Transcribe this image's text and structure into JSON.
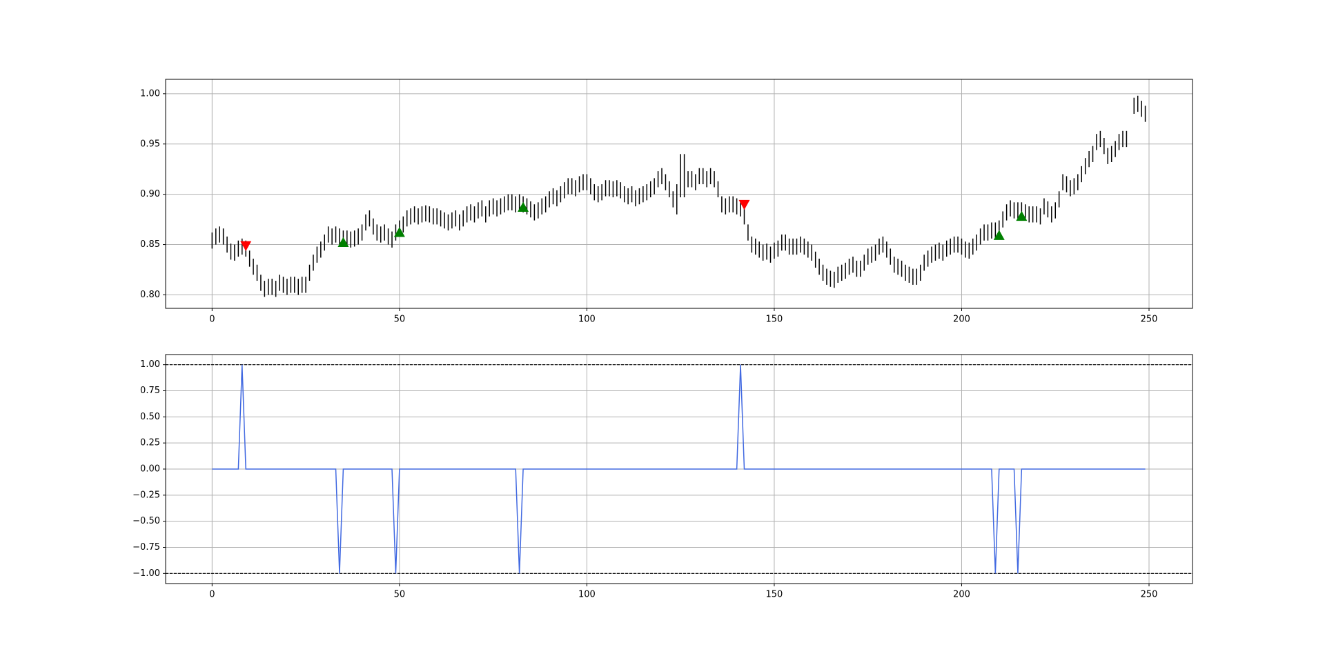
{
  "chart_data": [
    {
      "type": "range_bar",
      "color": "#000000",
      "grid": true,
      "xlim": [
        -12.4,
        261.6
      ],
      "xticks": [
        0,
        50,
        100,
        150,
        200,
        250
      ],
      "ylim": [
        0.7866,
        1.0143
      ],
      "yticks": [
        {
          "value": 0.8,
          "label": "0.80"
        },
        {
          "value": 0.85,
          "label": "0.85"
        },
        {
          "value": 0.9,
          "label": "0.90"
        },
        {
          "value": 0.95,
          "label": "0.95"
        },
        {
          "value": 1.0,
          "label": "1.00"
        }
      ],
      "low": [
        0.846,
        0.85,
        0.852,
        0.85,
        0.842,
        0.835,
        0.834,
        0.838,
        0.84,
        0.838,
        0.828,
        0.82,
        0.814,
        0.804,
        0.798,
        0.8,
        0.8,
        0.798,
        0.804,
        0.802,
        0.8,
        0.802,
        0.802,
        0.8,
        0.802,
        0.802,
        0.814,
        0.824,
        0.832,
        0.837,
        0.844,
        0.852,
        0.85,
        0.852,
        0.85,
        0.848,
        0.848,
        0.847,
        0.848,
        0.85,
        0.854,
        0.864,
        0.868,
        0.86,
        0.854,
        0.852,
        0.854,
        0.85,
        0.847,
        0.854,
        0.858,
        0.862,
        0.868,
        0.87,
        0.872,
        0.87,
        0.872,
        0.873,
        0.872,
        0.87,
        0.87,
        0.868,
        0.866,
        0.864,
        0.866,
        0.868,
        0.864,
        0.868,
        0.872,
        0.874,
        0.872,
        0.876,
        0.878,
        0.872,
        0.878,
        0.88,
        0.878,
        0.88,
        0.882,
        0.884,
        0.884,
        0.882,
        0.884,
        0.882,
        0.88,
        0.877,
        0.874,
        0.876,
        0.88,
        0.882,
        0.887,
        0.89,
        0.888,
        0.892,
        0.896,
        0.9,
        0.9,
        0.898,
        0.902,
        0.904,
        0.904,
        0.9,
        0.894,
        0.892,
        0.894,
        0.898,
        0.898,
        0.897,
        0.898,
        0.896,
        0.892,
        0.89,
        0.892,
        0.888,
        0.89,
        0.892,
        0.894,
        0.897,
        0.9,
        0.907,
        0.91,
        0.904,
        0.897,
        0.887,
        0.88,
        0.897,
        0.897,
        0.907,
        0.907,
        0.904,
        0.91,
        0.91,
        0.907,
        0.91,
        0.907,
        0.897,
        0.882,
        0.88,
        0.882,
        0.882,
        0.88,
        0.878,
        0.87,
        0.854,
        0.842,
        0.84,
        0.837,
        0.834,
        0.835,
        0.832,
        0.836,
        0.838,
        0.844,
        0.844,
        0.84,
        0.84,
        0.84,
        0.842,
        0.84,
        0.837,
        0.834,
        0.827,
        0.82,
        0.814,
        0.81,
        0.808,
        0.807,
        0.812,
        0.814,
        0.816,
        0.82,
        0.822,
        0.818,
        0.818,
        0.824,
        0.83,
        0.832,
        0.834,
        0.84,
        0.842,
        0.837,
        0.83,
        0.822,
        0.82,
        0.818,
        0.814,
        0.812,
        0.81,
        0.81,
        0.814,
        0.824,
        0.828,
        0.832,
        0.834,
        0.836,
        0.834,
        0.838,
        0.84,
        0.842,
        0.842,
        0.84,
        0.837,
        0.836,
        0.84,
        0.844,
        0.85,
        0.854,
        0.854,
        0.856,
        0.856,
        0.858,
        0.867,
        0.874,
        0.878,
        0.876,
        0.876,
        0.876,
        0.874,
        0.872,
        0.872,
        0.872,
        0.87,
        0.88,
        0.877,
        0.872,
        0.876,
        0.887,
        0.904,
        0.902,
        0.898,
        0.9,
        0.904,
        0.912,
        0.92,
        0.927,
        0.932,
        0.944,
        0.947,
        0.94,
        0.93,
        0.932,
        0.937,
        0.944,
        0.947,
        0.947,
        null,
        0.98,
        0.982,
        0.977,
        0.972
      ],
      "high": [
        0.862,
        0.866,
        0.868,
        0.866,
        0.858,
        0.851,
        0.85,
        0.854,
        0.856,
        0.854,
        0.844,
        0.836,
        0.83,
        0.82,
        0.814,
        0.816,
        0.816,
        0.814,
        0.82,
        0.818,
        0.816,
        0.818,
        0.818,
        0.816,
        0.818,
        0.818,
        0.83,
        0.84,
        0.848,
        0.853,
        0.86,
        0.868,
        0.866,
        0.868,
        0.866,
        0.864,
        0.864,
        0.863,
        0.864,
        0.866,
        0.87,
        0.88,
        0.884,
        0.876,
        0.87,
        0.868,
        0.87,
        0.866,
        0.863,
        0.87,
        0.874,
        0.878,
        0.884,
        0.886,
        0.888,
        0.886,
        0.888,
        0.889,
        0.888,
        0.886,
        0.886,
        0.884,
        0.882,
        0.88,
        0.882,
        0.884,
        0.88,
        0.884,
        0.888,
        0.89,
        0.888,
        0.892,
        0.894,
        0.888,
        0.894,
        0.896,
        0.894,
        0.896,
        0.898,
        0.9,
        0.9,
        0.898,
        0.9,
        0.898,
        0.896,
        0.893,
        0.89,
        0.892,
        0.896,
        0.898,
        0.903,
        0.906,
        0.904,
        0.908,
        0.912,
        0.916,
        0.916,
        0.914,
        0.918,
        0.92,
        0.92,
        0.916,
        0.91,
        0.908,
        0.91,
        0.914,
        0.914,
        0.913,
        0.914,
        0.912,
        0.908,
        0.906,
        0.908,
        0.904,
        0.906,
        0.908,
        0.91,
        0.913,
        0.916,
        0.923,
        0.926,
        0.92,
        0.913,
        0.903,
        0.91,
        0.94,
        0.94,
        0.923,
        0.923,
        0.92,
        0.926,
        0.926,
        0.923,
        0.926,
        0.923,
        0.913,
        0.898,
        0.896,
        0.898,
        0.898,
        0.896,
        0.894,
        0.886,
        0.87,
        0.858,
        0.856,
        0.853,
        0.85,
        0.851,
        0.848,
        0.852,
        0.854,
        0.86,
        0.86,
        0.856,
        0.856,
        0.856,
        0.858,
        0.856,
        0.853,
        0.85,
        0.843,
        0.836,
        0.83,
        0.826,
        0.824,
        0.823,
        0.828,
        0.83,
        0.832,
        0.836,
        0.838,
        0.834,
        0.834,
        0.84,
        0.846,
        0.848,
        0.85,
        0.856,
        0.858,
        0.853,
        0.846,
        0.838,
        0.836,
        0.834,
        0.83,
        0.828,
        0.826,
        0.826,
        0.83,
        0.84,
        0.844,
        0.848,
        0.85,
        0.852,
        0.85,
        0.854,
        0.856,
        0.858,
        0.858,
        0.856,
        0.853,
        0.852,
        0.856,
        0.86,
        0.866,
        0.87,
        0.87,
        0.872,
        0.872,
        0.874,
        0.883,
        0.89,
        0.894,
        0.892,
        0.892,
        0.892,
        0.89,
        0.888,
        0.888,
        0.888,
        0.886,
        0.896,
        0.893,
        0.888,
        0.892,
        0.903,
        0.92,
        0.918,
        0.914,
        0.916,
        0.92,
        0.928,
        0.936,
        0.943,
        0.948,
        0.96,
        0.963,
        0.956,
        0.946,
        0.948,
        0.953,
        0.96,
        0.963,
        0.963,
        null,
        0.996,
        0.998,
        0.993,
        0.988
      ],
      "markers": [
        {
          "shape": "triangle-up",
          "color": "#008000",
          "x": [
            35,
            50,
            83,
            210,
            216
          ],
          "y": [
            0.852,
            0.862,
            0.887,
            0.859,
            0.878
          ]
        },
        {
          "shape": "triangle-down",
          "color": "#ff0000",
          "x": [
            9,
            142
          ],
          "y": [
            0.849,
            0.89
          ]
        }
      ]
    },
    {
      "type": "line",
      "color": "#4169e1",
      "grid": true,
      "xlim": [
        -12.4,
        261.6
      ],
      "xticks": [
        0,
        50,
        100,
        150,
        200,
        250
      ],
      "ylim": [
        -1.097,
        1.097
      ],
      "yticks": [
        {
          "value": -1,
          "label": "−1.00"
        },
        {
          "value": -0.75,
          "label": "−0.75"
        },
        {
          "value": -0.5,
          "label": "−0.50"
        },
        {
          "value": -0.25,
          "label": "−0.25"
        },
        {
          "value": 0,
          "label": "0.00"
        },
        {
          "value": 0.25,
          "label": "0.25"
        },
        {
          "value": 0.5,
          "label": "0.50"
        },
        {
          "value": 0.75,
          "label": "0.75"
        },
        {
          "value": 1,
          "label": "1.00"
        }
      ],
      "hlines": [
        1,
        -1
      ],
      "values": [
        0,
        0,
        0,
        0,
        0,
        0,
        0,
        0,
        1,
        0,
        0,
        0,
        0,
        0,
        0,
        0,
        0,
        0,
        0,
        0,
        0,
        0,
        0,
        0,
        0,
        0,
        0,
        0,
        0,
        0,
        0,
        0,
        0,
        0,
        -1,
        0,
        0,
        0,
        0,
        0,
        0,
        0,
        0,
        0,
        0,
        0,
        0,
        0,
        0,
        -1,
        0,
        0,
        0,
        0,
        0,
        0,
        0,
        0,
        0,
        0,
        0,
        0,
        0,
        0,
        0,
        0,
        0,
        0,
        0,
        0,
        0,
        0,
        0,
        0,
        0,
        0,
        0,
        0,
        0,
        0,
        0,
        0,
        -1,
        0,
        0,
        0,
        0,
        0,
        0,
        0,
        0,
        0,
        0,
        0,
        0,
        0,
        0,
        0,
        0,
        0,
        0,
        0,
        0,
        0,
        0,
        0,
        0,
        0,
        0,
        0,
        0,
        0,
        0,
        0,
        0,
        0,
        0,
        0,
        0,
        0,
        0,
        0,
        0,
        0,
        0,
        0,
        0,
        0,
        0,
        0,
        0,
        0,
        0,
        0,
        0,
        0,
        0,
        0,
        0,
        0,
        0,
        1,
        0,
        0,
        0,
        0,
        0,
        0,
        0,
        0,
        0,
        0,
        0,
        0,
        0,
        0,
        0,
        0,
        0,
        0,
        0,
        0,
        0,
        0,
        0,
        0,
        0,
        0,
        0,
        0,
        0,
        0,
        0,
        0,
        0,
        0,
        0,
        0,
        0,
        0,
        0,
        0,
        0,
        0,
        0,
        0,
        0,
        0,
        0,
        0,
        0,
        0,
        0,
        0,
        0,
        0,
        0,
        0,
        0,
        0,
        0,
        0,
        0,
        0,
        0,
        0,
        0,
        0,
        0,
        -1,
        0,
        0,
        0,
        0,
        0,
        -1,
        0,
        0,
        0,
        0,
        0,
        0,
        0,
        0,
        0,
        0,
        0,
        0,
        0,
        0,
        0,
        0,
        0,
        0,
        0,
        0,
        0,
        0,
        0,
        0,
        0,
        0,
        0,
        0,
        0,
        0,
        0,
        0,
        0,
        0
      ]
    }
  ]
}
